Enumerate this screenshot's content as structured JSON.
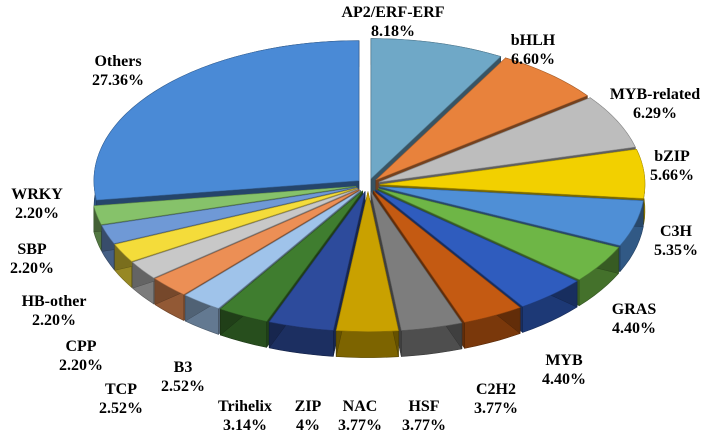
{
  "chart_data": {
    "type": "pie",
    "style": "3d exploded",
    "slices": [
      {
        "label": "AP2/ERF-ERF",
        "pct_text": "8.18%",
        "value": 8.18,
        "color": "#6fa8c7"
      },
      {
        "label": "bHLH",
        "pct_text": "6.60%",
        "value": 6.6,
        "color": "#e8823c"
      },
      {
        "label": "MYB-related",
        "pct_text": "6.29%",
        "value": 6.29,
        "color": "#bdbdbd"
      },
      {
        "label": "bZIP",
        "pct_text": "5.66%",
        "value": 5.66,
        "color": "#f2d000"
      },
      {
        "label": "C3H",
        "pct_text": "5.35%",
        "value": 5.35,
        "color": "#4f8fd6"
      },
      {
        "label": "GRAS",
        "pct_text": "4.40%",
        "value": 4.4,
        "color": "#6eb646"
      },
      {
        "label": "MYB",
        "pct_text": "4.40%",
        "value": 4.4,
        "color": "#2f5cbe"
      },
      {
        "label": "C2H2",
        "pct_text": "3.77%",
        "value": 3.77,
        "color": "#c45a12"
      },
      {
        "label": "HSF",
        "pct_text": "3.77%",
        "value": 3.77,
        "color": "#7d7d7d"
      },
      {
        "label": "NAC",
        "pct_text": "3.77%",
        "value": 3.77,
        "color": "#c9a100"
      },
      {
        "label": "ZIP",
        "pct_text": "4%",
        "value": 4.0,
        "color": "#2d4b9c"
      },
      {
        "label": "Trihelix",
        "pct_text": "3.14%",
        "value": 3.14,
        "color": "#3f7d2f"
      },
      {
        "label": "B3",
        "pct_text": "2.52%",
        "value": 2.52,
        "color": "#9fc3ea"
      },
      {
        "label": "TCP",
        "pct_text": "2.52%",
        "value": 2.52,
        "color": "#ec8f55"
      },
      {
        "label": "CPP",
        "pct_text": "2.20%",
        "value": 2.2,
        "color": "#c8c8c8"
      },
      {
        "label": "HB-other",
        "pct_text": "2.20%",
        "value": 2.2,
        "color": "#f4dc3a"
      },
      {
        "label": "SBP",
        "pct_text": "2.20%",
        "value": 2.2,
        "color": "#6f99d6"
      },
      {
        "label": "WRKY",
        "pct_text": "2.20%",
        "value": 2.2,
        "color": "#86c26a"
      },
      {
        "label": "Others",
        "pct_text": "27.36%",
        "value": 27.36,
        "color": "#4a8ad6"
      }
    ]
  }
}
